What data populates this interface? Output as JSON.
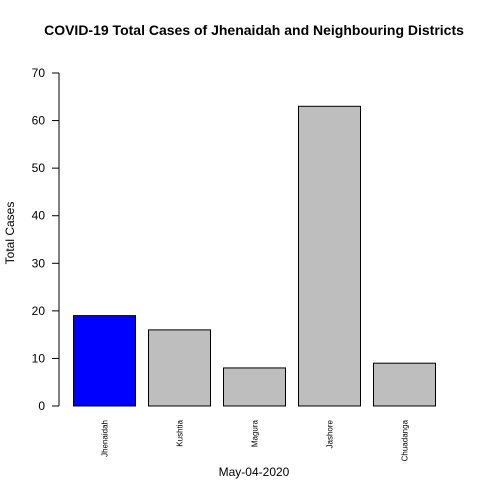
{
  "chart_data": {
    "type": "bar",
    "title": "COVID-19 Total Cases of Jhenaidah and Neighbouring Districts",
    "xlabel": "May-04-2020",
    "ylabel": "Total Cases",
    "categories": [
      "Jhenaidah",
      "Kushtia",
      "Magura",
      "Jashore",
      "Chuadanga"
    ],
    "values": [
      19,
      16,
      8,
      63,
      9
    ],
    "colors": [
      "#0000ff",
      "#bebebe",
      "#bebebe",
      "#bebebe",
      "#bebebe"
    ],
    "ylim": [
      0,
      70
    ],
    "yticks": [
      0,
      10,
      20,
      30,
      40,
      50,
      60,
      70
    ],
    "grid": false,
    "legend": "none"
  }
}
